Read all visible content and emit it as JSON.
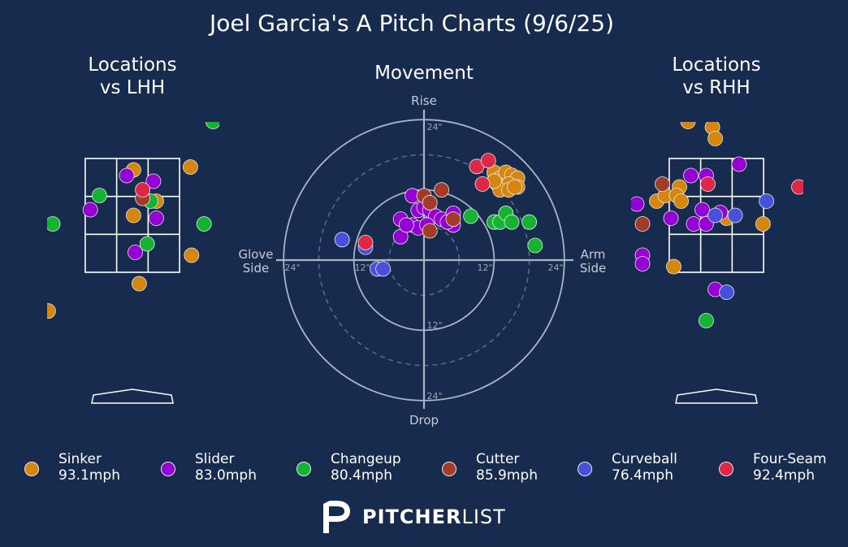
{
  "chart_data": {
    "type": "scatter",
    "title": "Joel Garcia's A Pitch Charts (9/6/25)",
    "colors": {
      "background": "#162b4d",
      "Sinker": "#d4860e",
      "Slider": "#9400d3",
      "Changeup": "#14b432",
      "Cutter": "#a03c28",
      "Curveball": "#4650dc",
      "Four-Seam": "#dc2846"
    },
    "legend": [
      {
        "name": "Sinker",
        "speed": "93.1mph"
      },
      {
        "name": "Slider",
        "speed": "83.0mph"
      },
      {
        "name": "Changeup",
        "speed": "80.4mph"
      },
      {
        "name": "Cutter",
        "speed": "85.9mph"
      },
      {
        "name": "Curveball",
        "speed": "76.4mph"
      },
      {
        "name": "Four-Seam",
        "speed": "92.4mph"
      }
    ],
    "panels": {
      "lhh": {
        "title_line1": "Locations",
        "title_line2": "vs LHH",
        "xlim": [
          -2.0,
          2.0
        ],
        "ylim": [
          -0.5,
          5.0
        ],
        "strike_zone": {
          "x": [
            -0.83,
            0.83
          ],
          "y": [
            1.5,
            3.5
          ]
        },
        "points": [
          {
            "type": "Sinker",
            "x": 0.02,
            "y": 3.3
          },
          {
            "type": "Sinker",
            "x": 1.02,
            "y": 3.35
          },
          {
            "type": "Sinker",
            "x": 0.42,
            "y": 2.75
          },
          {
            "type": "Sinker",
            "x": 0.02,
            "y": 2.5
          },
          {
            "type": "Sinker",
            "x": 1.04,
            "y": 1.8
          },
          {
            "type": "Sinker",
            "x": 0.12,
            "y": 1.3
          },
          {
            "type": "Sinker",
            "x": -1.48,
            "y": 0.82
          },
          {
            "type": "Slider",
            "x": -0.1,
            "y": 3.2
          },
          {
            "type": "Slider",
            "x": 0.37,
            "y": 3.1
          },
          {
            "type": "Slider",
            "x": -0.74,
            "y": 2.6
          },
          {
            "type": "Slider",
            "x": 0.42,
            "y": 2.45
          },
          {
            "type": "Slider",
            "x": 0.05,
            "y": 1.85
          },
          {
            "type": "Changeup",
            "x": 1.42,
            "y": 4.15
          },
          {
            "type": "Changeup",
            "x": -0.58,
            "y": 2.85
          },
          {
            "type": "Changeup",
            "x": 0.32,
            "y": 2.75
          },
          {
            "type": "Changeup",
            "x": 1.26,
            "y": 2.35
          },
          {
            "type": "Changeup",
            "x": 0.26,
            "y": 2.0
          },
          {
            "type": "Changeup",
            "x": -1.4,
            "y": 2.35
          },
          {
            "type": "Cutter",
            "x": 0.18,
            "y": 2.8
          },
          {
            "type": "Four-Seam",
            "x": 0.18,
            "y": 2.95
          }
        ]
      },
      "movement": {
        "title": "Movement",
        "label_top": "Rise",
        "label_bottom": "Drop",
        "label_left_line1": "Glove",
        "label_left_line2": "Side",
        "label_right_line1": "Arm",
        "label_right_line2": "Side",
        "ring_labels": {
          "inner": "12\"",
          "outer": "24\""
        },
        "rings": [
          6,
          12,
          18,
          24
        ],
        "lim": [
          -25,
          25
        ],
        "points": [
          {
            "type": "Sinker",
            "x": 12,
            "y": 15
          },
          {
            "type": "Sinker",
            "x": 13,
            "y": 14
          },
          {
            "type": "Sinker",
            "x": 14,
            "y": 15
          },
          {
            "type": "Sinker",
            "x": 15,
            "y": 14.5
          },
          {
            "type": "Sinker",
            "x": 16,
            "y": 14
          },
          {
            "type": "Sinker",
            "x": 12.5,
            "y": 13
          },
          {
            "type": "Sinker",
            "x": 13.5,
            "y": 12.5
          },
          {
            "type": "Sinker",
            "x": 14.5,
            "y": 13
          },
          {
            "type": "Sinker",
            "x": 16,
            "y": 12.5
          },
          {
            "type": "Sinker",
            "x": 13,
            "y": 12
          },
          {
            "type": "Sinker",
            "x": 14.5,
            "y": 12
          },
          {
            "type": "Sinker",
            "x": 15.5,
            "y": 12.5
          },
          {
            "type": "Sinker",
            "x": 12,
            "y": 13.5
          },
          {
            "type": "Slider",
            "x": -2,
            "y": 11
          },
          {
            "type": "Slider",
            "x": -1,
            "y": 8.5
          },
          {
            "type": "Slider",
            "x": 0,
            "y": 9
          },
          {
            "type": "Slider",
            "x": 1,
            "y": 8.5
          },
          {
            "type": "Slider",
            "x": 2,
            "y": 7.5
          },
          {
            "type": "Slider",
            "x": 3,
            "y": 7
          },
          {
            "type": "Slider",
            "x": 5,
            "y": 8
          },
          {
            "type": "Slider",
            "x": -4,
            "y": 7
          },
          {
            "type": "Slider",
            "x": -2,
            "y": 6
          },
          {
            "type": "Slider",
            "x": -1,
            "y": 5.5
          },
          {
            "type": "Slider",
            "x": 0.5,
            "y": 6
          },
          {
            "type": "Slider",
            "x": -4,
            "y": 4
          },
          {
            "type": "Slider",
            "x": 5,
            "y": 6
          },
          {
            "type": "Slider",
            "x": 4,
            "y": 6.5
          },
          {
            "type": "Slider",
            "x": -3,
            "y": 6
          },
          {
            "type": "Changeup",
            "x": 8,
            "y": 7.5
          },
          {
            "type": "Changeup",
            "x": 12,
            "y": 6.5
          },
          {
            "type": "Changeup",
            "x": 13,
            "y": 6.5
          },
          {
            "type": "Changeup",
            "x": 14,
            "y": 8
          },
          {
            "type": "Changeup",
            "x": 15,
            "y": 6.5
          },
          {
            "type": "Changeup",
            "x": 18,
            "y": 6.5
          },
          {
            "type": "Changeup",
            "x": 19,
            "y": 2.5
          },
          {
            "type": "Cutter",
            "x": 3,
            "y": 12
          },
          {
            "type": "Cutter",
            "x": 0,
            "y": 11
          },
          {
            "type": "Cutter",
            "x": 1,
            "y": 9.8
          },
          {
            "type": "Cutter",
            "x": 5,
            "y": 7
          },
          {
            "type": "Cutter",
            "x": 1,
            "y": 5
          },
          {
            "type": "Curveball",
            "x": -14,
            "y": 3.5
          },
          {
            "type": "Curveball",
            "x": -10,
            "y": 2.2
          },
          {
            "type": "Curveball",
            "x": -8,
            "y": -1.5
          },
          {
            "type": "Curveball",
            "x": -7,
            "y": -1.5
          },
          {
            "type": "Four-Seam",
            "x": 9,
            "y": 16
          },
          {
            "type": "Four-Seam",
            "x": 11,
            "y": 17
          },
          {
            "type": "Four-Seam",
            "x": 10,
            "y": 13
          },
          {
            "type": "Four-Seam",
            "x": -10,
            "y": 3
          }
        ]
      },
      "rhh": {
        "title_line1": "Locations",
        "title_line2": "vs RHH",
        "xlim": [
          -2.0,
          2.0
        ],
        "ylim": [
          -0.5,
          5.0
        ],
        "strike_zone": {
          "x": [
            -0.83,
            0.83
          ],
          "y": [
            1.5,
            3.5
          ]
        },
        "points": [
          {
            "type": "Sinker",
            "x": -0.5,
            "y": 4.15
          },
          {
            "type": "Sinker",
            "x": -0.1,
            "y": 4.25
          },
          {
            "type": "Sinker",
            "x": -0.07,
            "y": 4.05
          },
          {
            "type": "Sinker",
            "x": -0.02,
            "y": 3.85
          },
          {
            "type": "Sinker",
            "x": -0.65,
            "y": 3.0
          },
          {
            "type": "Sinker",
            "x": -1.05,
            "y": 2.75
          },
          {
            "type": "Sinker",
            "x": -0.9,
            "y": 2.85
          },
          {
            "type": "Sinker",
            "x": -0.7,
            "y": 2.85
          },
          {
            "type": "Sinker",
            "x": -0.62,
            "y": 2.75
          },
          {
            "type": "Sinker",
            "x": 0.18,
            "y": 2.45
          },
          {
            "type": "Sinker",
            "x": 0.82,
            "y": 2.35
          },
          {
            "type": "Sinker",
            "x": -0.75,
            "y": 1.6
          },
          {
            "type": "Slider",
            "x": 1.0,
            "y": 4.3
          },
          {
            "type": "Slider",
            "x": 0.4,
            "y": 3.4
          },
          {
            "type": "Slider",
            "x": -0.45,
            "y": 3.2
          },
          {
            "type": "Slider",
            "x": -0.18,
            "y": 3.2
          },
          {
            "type": "Slider",
            "x": -1.4,
            "y": 2.7
          },
          {
            "type": "Slider",
            "x": -0.25,
            "y": 2.6
          },
          {
            "type": "Slider",
            "x": 0.07,
            "y": 2.55
          },
          {
            "type": "Slider",
            "x": -0.8,
            "y": 2.45
          },
          {
            "type": "Slider",
            "x": -0.4,
            "y": 2.35
          },
          {
            "type": "Slider",
            "x": -0.18,
            "y": 2.35
          },
          {
            "type": "Slider",
            "x": -1.3,
            "y": 1.8
          },
          {
            "type": "Slider",
            "x": -1.3,
            "y": 1.65
          },
          {
            "type": "Slider",
            "x": -0.02,
            "y": 1.2
          },
          {
            "type": "Changeup",
            "x": -0.18,
            "y": 0.65
          },
          {
            "type": "Cutter",
            "x": -0.95,
            "y": 3.05
          },
          {
            "type": "Cutter",
            "x": -1.3,
            "y": 2.35
          },
          {
            "type": "Curveball",
            "x": 0.88,
            "y": 2.75
          },
          {
            "type": "Curveball",
            "x": -0.02,
            "y": 2.5
          },
          {
            "type": "Curveball",
            "x": 0.33,
            "y": 2.5
          },
          {
            "type": "Curveball",
            "x": 0.18,
            "y": 1.15
          },
          {
            "type": "Four-Seam",
            "x": 0.7,
            "y": 4.4
          },
          {
            "type": "Four-Seam",
            "x": 0.8,
            "y": 4.35
          },
          {
            "type": "Four-Seam",
            "x": -0.15,
            "y": 3.05
          },
          {
            "type": "Four-Seam",
            "x": 1.45,
            "y": 3.0
          }
        ]
      }
    }
  },
  "brand": {
    "bold": "PITCHER",
    "light": "LIST"
  }
}
